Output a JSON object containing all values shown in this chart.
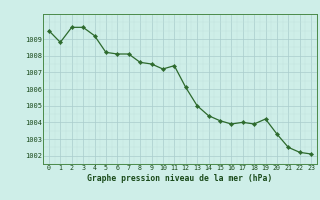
{
  "hours": [
    0,
    1,
    2,
    3,
    4,
    5,
    6,
    7,
    8,
    9,
    10,
    11,
    12,
    13,
    14,
    15,
    16,
    17,
    18,
    19,
    20,
    21,
    22,
    23
  ],
  "pressure": [
    1009.5,
    1008.8,
    1009.7,
    1009.7,
    1009.2,
    1008.2,
    1008.1,
    1008.1,
    1007.6,
    1007.5,
    1007.2,
    1007.4,
    1006.1,
    1005.0,
    1004.4,
    1004.1,
    1003.9,
    1004.0,
    1003.9,
    1004.2,
    1003.3,
    1002.5,
    1002.2,
    1002.1
  ],
  "ylim": [
    1001.5,
    1010.5
  ],
  "yticks": [
    1002,
    1003,
    1004,
    1005,
    1006,
    1007,
    1008,
    1009
  ],
  "xlabel": "Graphe pression niveau de la mer (hPa)",
  "line_color": "#2d6a2d",
  "marker_color": "#2d6a2d",
  "bg_color": "#ceeee8",
  "grid_color_major": "#aacccc",
  "grid_color_minor": "#c0e0dc",
  "tick_color": "#1a4a1a",
  "label_color": "#1a4a1a"
}
